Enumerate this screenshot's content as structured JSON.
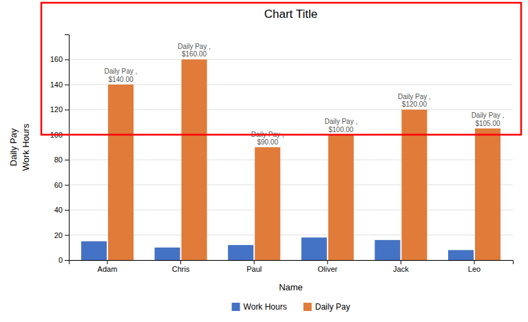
{
  "chart_data": {
    "type": "bar",
    "title": "Chart Title",
    "xlabel": "Name",
    "ylabel": [
      "Work Hours",
      "Daily Pay"
    ],
    "categories": [
      "Adam",
      "Chris",
      "Paul",
      "Oliver",
      "Jack",
      "Leo"
    ],
    "series": [
      {
        "name": "Work Hours",
        "color": "#4472C4",
        "values": [
          15,
          10,
          12,
          18,
          16,
          8
        ]
      },
      {
        "name": "Daily Pay",
        "color": "#E07B39",
        "values": [
          140,
          160,
          90,
          100,
          120,
          105
        ],
        "value_labels": [
          "Daily Pay ,\n$140.00",
          "Daily Pay ,\n$160.00",
          "Daily Pay ,\n$90.00",
          "Daily Pay ,\n$100.00",
          "Daily Pay ,\n$120.00",
          "Daily Pay ,\n$105.00"
        ]
      }
    ],
    "ylim": [
      0,
      180
    ],
    "yticks": [
      0,
      20,
      40,
      60,
      80,
      100,
      120,
      140,
      160
    ],
    "grid": true,
    "legend": "bottom",
    "data_labels": true,
    "highlight": {
      "y": 100,
      "color": "#ff0000"
    }
  }
}
